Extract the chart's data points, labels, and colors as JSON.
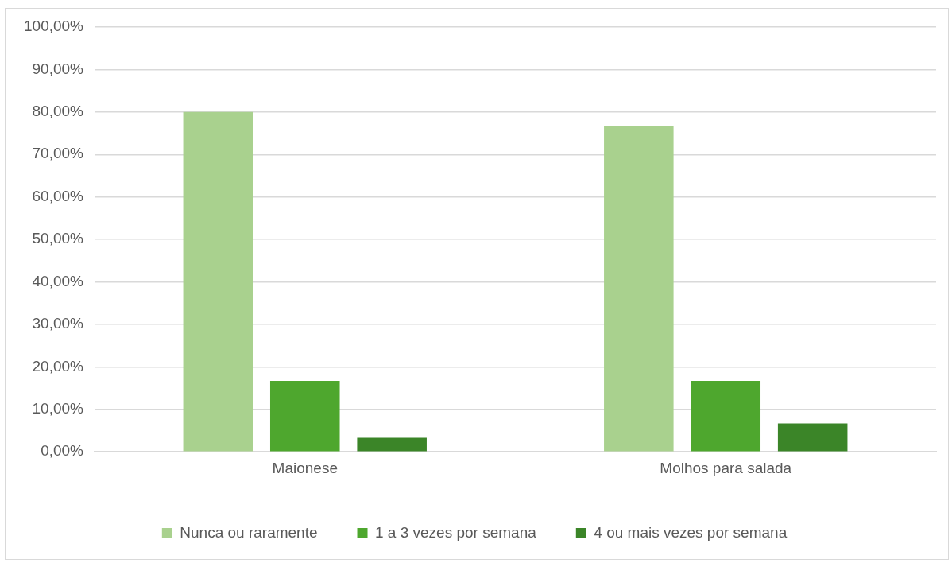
{
  "chart_data": {
    "type": "bar",
    "categories": [
      "Maionese",
      "Molhos para salada"
    ],
    "series": [
      {
        "name": "Nunca ou raramente",
        "color": "#a9d18e",
        "values": [
          80,
          76.7
        ]
      },
      {
        "name": "1 a 3 vezes por semana",
        "color": "#4ea72e",
        "values": [
          16.7,
          16.7
        ]
      },
      {
        "name": "4 ou mais vezes por semana",
        "color": "#3b8528",
        "values": [
          3.3,
          6.7
        ]
      }
    ],
    "ylim": [
      0,
      100
    ],
    "yticks": [
      {
        "value": 0,
        "label": "0,00%"
      },
      {
        "value": 10,
        "label": "10,00%"
      },
      {
        "value": 20,
        "label": "20,00%"
      },
      {
        "value": 30,
        "label": "30,00%"
      },
      {
        "value": 40,
        "label": "40,00%"
      },
      {
        "value": 50,
        "label": "50,00%"
      },
      {
        "value": 60,
        "label": "60,00%"
      },
      {
        "value": 70,
        "label": "70,00%"
      },
      {
        "value": 80,
        "label": "80,00%"
      },
      {
        "value": 90,
        "label": "90,00%"
      },
      {
        "value": 100,
        "label": "100,00%"
      }
    ],
    "grid": "y",
    "legend": "bottom"
  }
}
